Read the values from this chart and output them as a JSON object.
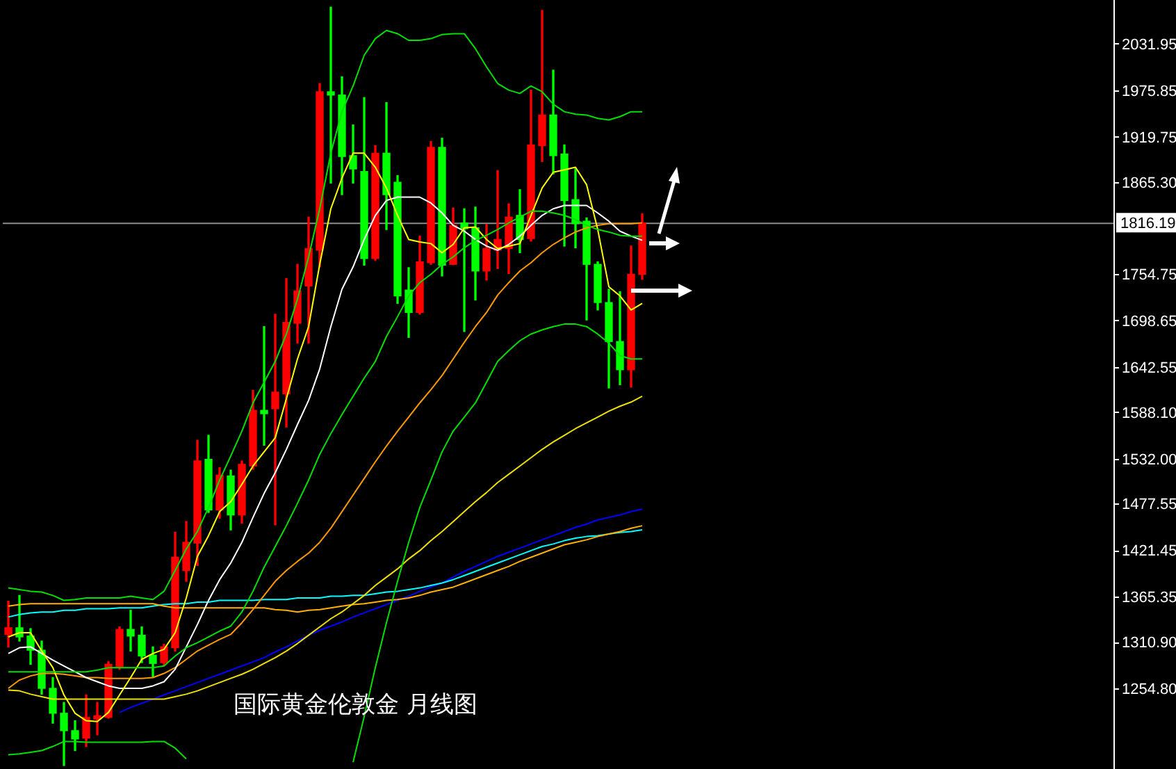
{
  "chart_data": {
    "type": "candlestick",
    "title": "国际黄金伦敦金 月线图",
    "categories": [
      null,
      null,
      null,
      null,
      null,
      null,
      null,
      null,
      null,
      null,
      null,
      null,
      null,
      null,
      null,
      null,
      null,
      null,
      null,
      null,
      null,
      null,
      null,
      null,
      null,
      null,
      null,
      null,
      null,
      null,
      null,
      null,
      null,
      null,
      null,
      null,
      null,
      null,
      null,
      null,
      null,
      null,
      null,
      null,
      null,
      null,
      null,
      null,
      null,
      null,
      null,
      null,
      null,
      null,
      null,
      null,
      null,
      null
    ],
    "ohlc": [
      [
        1320,
        1360,
        1305,
        1328
      ],
      [
        1328,
        1367,
        1312,
        1317
      ],
      [
        1318,
        1327,
        1284,
        1301
      ],
      [
        1301,
        1312,
        1248,
        1255
      ],
      [
        1255,
        1268,
        1213,
        1225
      ],
      [
        1225,
        1238,
        1162,
        1204
      ],
      [
        1204,
        1216,
        1180,
        1194
      ],
      [
        1195,
        1247,
        1185,
        1220
      ],
      [
        1218,
        1238,
        1199,
        1222
      ],
      [
        1220,
        1287,
        1219,
        1284
      ],
      [
        1281,
        1329,
        1278,
        1326
      ],
      [
        1326,
        1349,
        1300,
        1318
      ],
      [
        1319,
        1329,
        1286,
        1294
      ],
      [
        1295,
        1305,
        1269,
        1285
      ],
      [
        1286,
        1308,
        1283,
        1305
      ],
      [
        1304,
        1443,
        1300,
        1413
      ],
      [
        1397,
        1456,
        1384,
        1431
      ],
      [
        1430,
        1554,
        1403,
        1529
      ],
      [
        1531,
        1560,
        1467,
        1470
      ],
      [
        1470,
        1521,
        1460,
        1512
      ],
      [
        1511,
        1518,
        1446,
        1464
      ],
      [
        1464,
        1529,
        1454,
        1525
      ],
      [
        1523,
        1614,
        1519,
        1590
      ],
      [
        1590,
        1691,
        1548,
        1586
      ],
      [
        1592,
        1706,
        1452,
        1612
      ],
      [
        1610,
        1749,
        1570,
        1696
      ],
      [
        1695,
        1766,
        1671,
        1734
      ],
      [
        1740,
        1823,
        1671,
        1785
      ],
      [
        1783,
        1984,
        1763,
        1974
      ],
      [
        1974,
        2076,
        1864,
        1970
      ],
      [
        1970,
        1992,
        1850,
        1896
      ],
      [
        1897,
        1934,
        1864,
        1881
      ],
      [
        1878,
        1967,
        1765,
        1773
      ],
      [
        1773,
        1909,
        1771,
        1900
      ],
      [
        1900,
        1961,
        1808,
        1850
      ],
      [
        1865,
        1873,
        1719,
        1728
      ],
      [
        1735,
        1762,
        1678,
        1708
      ],
      [
        1708,
        1800,
        1706,
        1769
      ],
      [
        1768,
        1914,
        1766,
        1907
      ],
      [
        1907,
        1918,
        1752,
        1765
      ],
      [
        1766,
        1834,
        1766,
        1813
      ],
      [
        1816,
        1833,
        1685,
        1809
      ],
      [
        1810,
        1835,
        1723,
        1758
      ],
      [
        1758,
        1814,
        1747,
        1785
      ],
      [
        1783,
        1879,
        1761,
        1796
      ],
      [
        1785,
        1839,
        1755,
        1823
      ],
      [
        1825,
        1856,
        1780,
        1796
      ],
      [
        1797,
        1976,
        1794,
        1910
      ],
      [
        1909,
        2072,
        1890,
        1946
      ],
      [
        1946,
        2000,
        1875,
        1897
      ],
      [
        1899,
        1910,
        1788,
        1843
      ],
      [
        1844,
        1881,
        1786,
        1815
      ],
      [
        1818,
        1822,
        1699,
        1766
      ],
      [
        1766,
        1769,
        1711,
        1720
      ],
      [
        1720,
        1736,
        1617,
        1673
      ],
      [
        1673,
        1733,
        1621,
        1639
      ],
      [
        1639,
        1788,
        1618,
        1754
      ],
      [
        1754,
        1827,
        1748,
        1816
      ]
    ],
    "colors": [
      "#ff0000",
      "#00ff00",
      "#00ff00",
      "#00ff00",
      "#00ff00",
      "#00ff00",
      "#00ff00",
      "#ff0000",
      "#ff0000",
      "#ff0000",
      "#ff0000",
      "#00ff00",
      "#00ff00",
      "#00ff00",
      "#ff0000",
      "#ff0000",
      "#ff0000",
      "#ff0000",
      "#00ff00",
      "#ff0000",
      "#00ff00",
      "#ff0000",
      "#ff0000",
      "#00ff00",
      "#ff0000",
      "#ff0000",
      "#ff0000",
      "#ff0000",
      "#ff0000",
      "#00ff00",
      "#00ff00",
      "#00ff00",
      "#00ff00",
      "#ff0000",
      "#00ff00",
      "#00ff00",
      "#00ff00",
      "#ff0000",
      "#ff0000",
      "#00ff00",
      "#ff0000",
      "#00ff00",
      "#00ff00",
      "#ff0000",
      "#ff0000",
      "#ff0000",
      "#00ff00",
      "#ff0000",
      "#ff0000",
      "#00ff00",
      "#00ff00",
      "#00ff00",
      "#00ff00",
      "#00ff00",
      "#00ff00",
      "#00ff00",
      "#ff0000",
      "#ff0000"
    ],
    "series": [
      {
        "type": "line",
        "color": "#00e000",
        "values": [
          1376,
          1374,
          1372,
          1371,
          1367,
          1361,
          1362,
          1364,
          1364,
          1364,
          1364,
          1366,
          1364,
          1362,
          1372,
          1397,
          1423,
          1444,
          1473,
          1506,
          1535,
          1565,
          1599,
          1624,
          1649,
          1682,
          1724,
          1775,
          1833,
          1900,
          1950,
          1981,
          2018,
          2038,
          2048,
          2044,
          2036,
          2036,
          2038,
          2043,
          2044,
          2044,
          2026,
          2004,
          1984,
          1976,
          1972,
          1981,
          1974,
          1959,
          1950,
          1947,
          1946,
          1942,
          1940,
          1944,
          1950,
          1950
        ]
      },
      {
        "type": "line",
        "color": "#00e000",
        "values": [
          1275,
          1275,
          1275,
          1275,
          1275,
          1275,
          1275,
          1275,
          1277,
          1280,
          1280,
          1280,
          1280,
          1280,
          1282,
          1294,
          1304,
          1310,
          1317,
          1324,
          1330,
          1347,
          1372,
          1401,
          1426,
          1451,
          1478,
          1506,
          1537,
          1562,
          1585,
          1607,
          1629,
          1649,
          1679,
          1703,
          1728,
          1744,
          1754,
          1766,
          1775,
          1786,
          1795,
          1801,
          1808,
          1816,
          1823,
          1830,
          1830,
          1828,
          1825,
          1820,
          1813,
          1808,
          1805,
          1801,
          1800,
          1800
        ]
      },
      {
        "type": "line",
        "color": "#00e000",
        "values": [
          1175,
          1176,
          1178,
          1180,
          1185,
          1191,
          1191,
          1190,
          1190,
          1190,
          1190,
          1190,
          1190,
          1191,
          1191,
          1183,
          1170,
          null,
          null,
          null,
          null,
          null,
          null,
          null,
          null,
          null,
          null,
          null,
          null,
          null,
          null,
          1166,
          1221,
          1280,
          1334,
          1384,
          1431,
          1473,
          1506,
          1540,
          1565,
          1582,
          1599,
          1624,
          1649,
          1662,
          1674,
          1682,
          1687,
          1691,
          1694,
          1694,
          1691,
          1682,
          1671,
          1656,
          1652,
          1652
        ]
      },
      {
        "type": "line",
        "color": "#ffff00",
        "values": [
          1317,
          1322,
          1322,
          1300,
          1280,
          1247,
          1225,
          1216,
          1215,
          1226,
          1247,
          1268,
          1290,
          1297,
          1302,
          1322,
          1364,
          1414,
          1439,
          1468,
          1480,
          1501,
          1523,
          1540,
          1557,
          1604,
          1652,
          1691,
          1766,
          1833,
          1870,
          1900,
          1900,
          1883,
          1858,
          1825,
          1796,
          1793,
          1791,
          1780,
          1790,
          1810,
          1811,
          1796,
          1785,
          1788,
          1791,
          1825,
          1858,
          1877,
          1880,
          1883,
          1862,
          1808,
          1739,
          1728,
          1711,
          1719
        ]
      },
      {
        "type": "line",
        "color": "#ffffff",
        "values": [
          1297,
          1304,
          1305,
          1297,
          1289,
          1282,
          1275,
          1268,
          1263,
          1258,
          1255,
          1255,
          1255,
          1258,
          1263,
          1278,
          1305,
          1332,
          1361,
          1386,
          1406,
          1431,
          1461,
          1490,
          1515,
          1543,
          1573,
          1602,
          1640,
          1691,
          1736,
          1763,
          1796,
          1825,
          1843,
          1847,
          1847,
          1847,
          1840,
          1828,
          1813,
          1806,
          1796,
          1788,
          1783,
          1790,
          1800,
          1813,
          1825,
          1833,
          1837,
          1837,
          1837,
          1828,
          1818,
          1806,
          1800,
          1795
        ]
      },
      {
        "type": "line",
        "color": "#ff9900",
        "values": [
          1255,
          1265,
          1270,
          1273,
          1273,
          1272,
          1270,
          1268,
          1268,
          1267,
          1267,
          1267,
          1267,
          1268,
          1273,
          1280,
          1290,
          1300,
          1307,
          1314,
          1320,
          1334,
          1350,
          1367,
          1384,
          1397,
          1408,
          1418,
          1431,
          1448,
          1468,
          1488,
          1508,
          1528,
          1547,
          1565,
          1582,
          1599,
          1615,
          1632,
          1652,
          1672,
          1691,
          1708,
          1729,
          1744,
          1758,
          1768,
          1780,
          1790,
          1798,
          1805,
          1810,
          1813,
          1815,
          1815,
          1815,
          1816
        ]
      },
      {
        "type": "line",
        "color": "#f0e000",
        "values": [
          1253,
          1252,
          1248,
          1245,
          1242,
          1242,
          1242,
          1242,
          1242,
          1242,
          1242,
          1242,
          1242,
          1242,
          1242,
          1245,
          1248,
          1252,
          1257,
          1262,
          1267,
          1272,
          1278,
          1285,
          1292,
          1300,
          1309,
          1319,
          1329,
          1339,
          1347,
          1357,
          1367,
          1379,
          1389,
          1399,
          1411,
          1421,
          1433,
          1444,
          1456,
          1468,
          1480,
          1491,
          1503,
          1513,
          1523,
          1533,
          1543,
          1552,
          1560,
          1568,
          1575,
          1582,
          1589,
          1595,
          1600,
          1607
        ]
      },
      {
        "type": "line",
        "color": "#ffb000",
        "values": [
          1354,
          1356,
          1357,
          1357,
          1357,
          1357,
          1357,
          1357,
          1357,
          1357,
          1357,
          1357,
          1357,
          1357,
          1354,
          1352,
          1352,
          1352,
          1352,
          1352,
          1352,
          1352,
          1352,
          1352,
          1350,
          1349,
          1347,
          1349,
          1350,
          1352,
          1354,
          1356,
          1357,
          1359,
          1361,
          1362,
          1364,
          1367,
          1371,
          1374,
          1377,
          1382,
          1387,
          1392,
          1397,
          1402,
          1408,
          1413,
          1418,
          1423,
          1428,
          1431,
          1434,
          1438,
          1441,
          1444,
          1448,
          1451
        ]
      },
      {
        "type": "line",
        "color": "#00ffff",
        "values": [
          1341,
          1344,
          1346,
          1347,
          1347,
          1349,
          1349,
          1351,
          1351,
          1351,
          1352,
          1352,
          1352,
          1354,
          1356,
          1357,
          1357,
          1359,
          1359,
          1361,
          1361,
          1361,
          1361,
          1362,
          1362,
          1362,
          1364,
          1364,
          1364,
          1366,
          1366,
          1367,
          1367,
          1369,
          1371,
          1372,
          1374,
          1376,
          1379,
          1382,
          1386,
          1391,
          1396,
          1401,
          1406,
          1411,
          1416,
          1421,
          1426,
          1429,
          1433,
          1436,
          1438,
          1439,
          1441,
          1443,
          1444,
          1446
        ]
      },
      {
        "type": "line",
        "color": "#0000ff",
        "values": [
          null,
          null,
          null,
          null,
          null,
          null,
          null,
          null,
          null,
          null,
          1226,
          1232,
          1237,
          1242,
          1247,
          1252,
          1257,
          1262,
          1267,
          1272,
          1277,
          1282,
          1287,
          1292,
          1299,
          1305,
          1312,
          1319,
          1325,
          1330,
          1335,
          1341,
          1346,
          1351,
          1356,
          1361,
          1366,
          1372,
          1377,
          1382,
          1389,
          1396,
          1402,
          1408,
          1414,
          1419,
          1424,
          1429,
          1434,
          1439,
          1444,
          1449,
          1453,
          1458,
          1461,
          1464,
          1468,
          1471
        ]
      }
    ],
    "ylim": [
      1157.8,
      2084.6
    ],
    "yticks": [
      2031.95,
      1975.85,
      1919.75,
      {
        "value": 1865.3,
        "label": "1865.30"
      },
      1754.75,
      1698.65,
      1642.55,
      {
        "value": 1588.1,
        "label": "1588.10"
      },
      {
        "value": 1532,
        "label": "1532.00"
      },
      1477.55,
      1421.45,
      1365.35,
      {
        "value": 1310.9,
        "label": "1310.90"
      },
      {
        "value": 1254.8,
        "label": "1254.80"
      }
    ],
    "tick_labels": "y",
    "ref_lines": [
      {
        "axis": "y",
        "value": 1816.19,
        "label": "1816.19",
        "color": "#8c8c8c"
      }
    ]
  }
}
